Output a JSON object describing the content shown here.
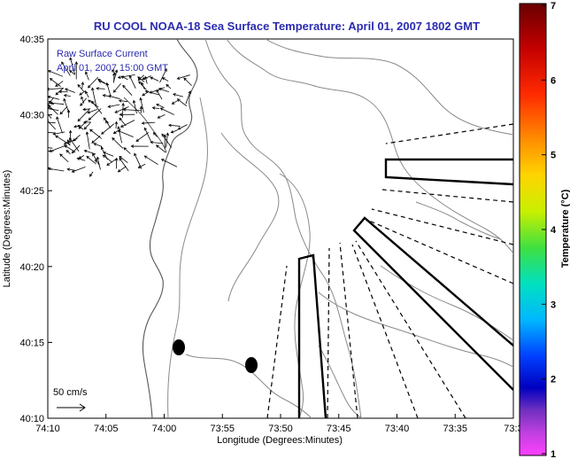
{
  "title": "RU COOL  NOAA-18  Sea Surface Temperature:  April 01, 2007 1802 GMT",
  "legend": {
    "line1": "Raw Surface Current",
    "line2": "April 01, 2007 15:00 GMT"
  },
  "scale_arrow_label": "50 cm/s",
  "axes": {
    "xlabel": "Longitude (Degrees:Minutes)",
    "ylabel": "Latitude (Degrees:Minutes)",
    "xticks": [
      "74:10",
      "74:05",
      "74:00",
      "73:55",
      "73:50",
      "73:45",
      "73:40",
      "73:35",
      "73:3"
    ],
    "yticks": [
      "40:35",
      "40:30",
      "40:25",
      "40:20",
      "40:15",
      "40:10"
    ]
  },
  "colorbar": {
    "label": "Temperature (°C)",
    "ticks": [
      "7",
      "6",
      "5",
      "4",
      "3",
      "2",
      "1"
    ],
    "range": [
      1,
      7
    ]
  },
  "colors": {
    "title": "#2b2bb0",
    "legend_text": "#2b2bb0",
    "frame": "#000000",
    "contour": "#8a8a8a",
    "coast": "#555555"
  }
}
